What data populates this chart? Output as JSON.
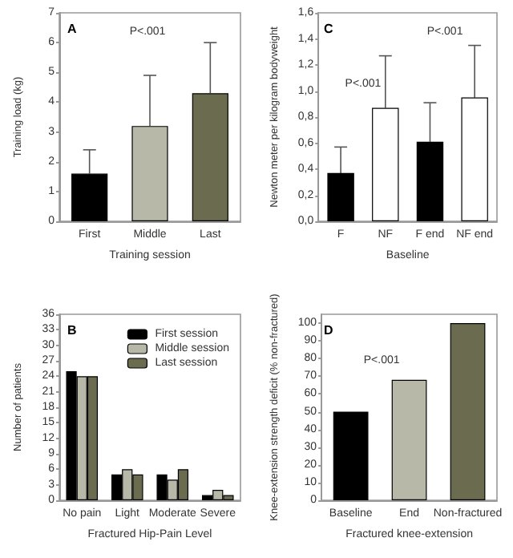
{
  "chart_data": [
    {
      "type": "bar",
      "title": "A",
      "xlabel": "Training session",
      "ylabel": "Training load (kg)",
      "categories": [
        "First",
        "Middle",
        "Last"
      ],
      "values": [
        1.6,
        3.2,
        4.3
      ],
      "colors": [
        "#000000",
        "#b8b8a8",
        "#6b6b50"
      ],
      "errors": [
        [
          1.6,
          2.4
        ],
        [
          3.2,
          4.9
        ],
        [
          4.3,
          6.0
        ]
      ],
      "ylim": [
        0,
        7
      ],
      "yticks": [
        0,
        1,
        2,
        3,
        4,
        5,
        6,
        7
      ],
      "annotations": [
        "P<.001"
      ]
    },
    {
      "type": "bar",
      "title": "C",
      "xlabel": "Baseline",
      "ylabel": "Newton meter per kilogram bodyweight",
      "categories": [
        "F",
        "NF",
        "F end",
        "NF end"
      ],
      "values": [
        0.37,
        0.87,
        0.61,
        0.95
      ],
      "colors": [
        "#000000",
        "#ffffff",
        "#000000",
        "#ffffff"
      ],
      "errors": [
        [
          0.37,
          0.57
        ],
        [
          0.87,
          1.27
        ],
        [
          0.61,
          0.91
        ],
        [
          0.95,
          1.35
        ]
      ],
      "ylim": [
        0,
        1.6
      ],
      "yticks": [
        {
          "value": 0,
          "label": "0,0"
        },
        {
          "value": 0.2,
          "label": "0,2"
        },
        {
          "value": 0.4,
          "label": "0,4"
        },
        {
          "value": 0.6,
          "label": "0,6"
        },
        {
          "value": 0.8,
          "label": "0,8"
        },
        {
          "value": 1.0,
          "label": "1,0"
        },
        {
          "value": 1.2,
          "label": "1,2"
        },
        {
          "value": 1.4,
          "label": "1,4"
        },
        {
          "value": 1.6,
          "label": "1,6"
        }
      ],
      "annotations": [
        "P<.001",
        "P<.001"
      ]
    },
    {
      "type": "bar",
      "title": "B",
      "xlabel": "Fractured Hip-Pain Level",
      "ylabel": "Number of patients",
      "categories": [
        "No pain",
        "Light",
        "Moderate",
        "Severe"
      ],
      "legend": "top right",
      "ylim": [
        0,
        36
      ],
      "yticks": [
        0,
        3,
        6,
        9,
        12,
        15,
        18,
        21,
        24,
        27,
        30,
        33,
        36
      ],
      "series": [
        {
          "name": "First session",
          "color": "#000000",
          "values": [
            25,
            5,
            5,
            1
          ]
        },
        {
          "name": "Middle session",
          "color": "#b8b8a8",
          "values": [
            24,
            6,
            4,
            2
          ]
        },
        {
          "name": "Last session",
          "color": "#6b6b50",
          "values": [
            24,
            5,
            6,
            1
          ]
        }
      ]
    },
    {
      "type": "bar",
      "title": "D",
      "xlabel": "Fractured knee-extension",
      "ylabel": "Knee-extension strength deficit (% non-fractured)",
      "categories": [
        "Baseline",
        "End",
        "Non-fractured"
      ],
      "values": [
        50,
        68,
        100
      ],
      "colors": [
        "#000000",
        "#b8b8a8",
        "#6b6b50"
      ],
      "ylim": [
        0,
        105
      ],
      "yticks": [
        0,
        10,
        20,
        30,
        40,
        50,
        60,
        70,
        80,
        90,
        100
      ],
      "annotations": [
        "P<.001"
      ]
    }
  ]
}
